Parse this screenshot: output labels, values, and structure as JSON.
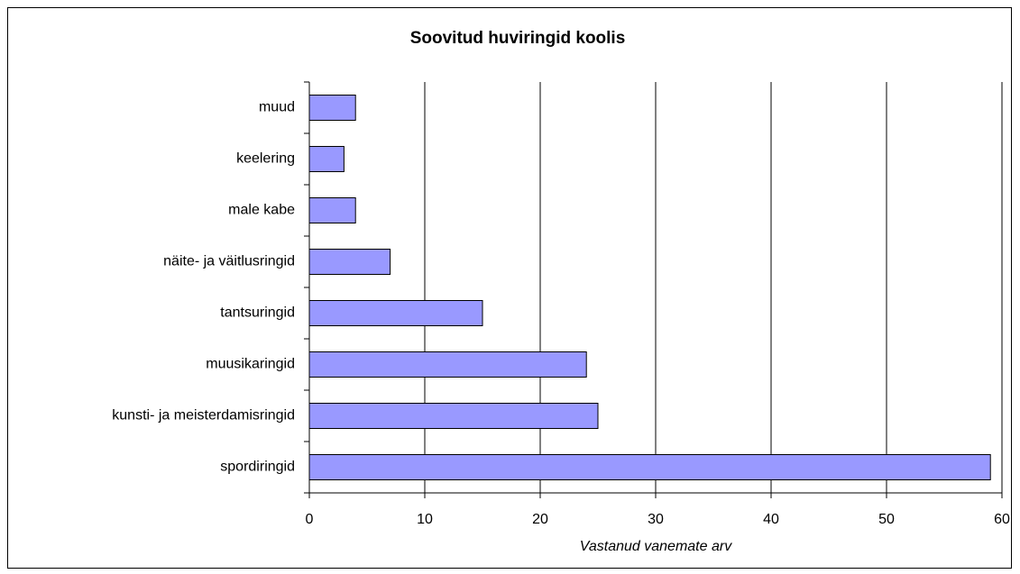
{
  "chart_data": {
    "type": "bar",
    "orientation": "horizontal",
    "title": "Soovitud huviringid koolis",
    "xlabel": "Vastanud vanemate arv",
    "categories": [
      "muud",
      "keelering",
      "male kabe",
      "näite- ja väitlusringid",
      "tantsuringid",
      "muusikaringid",
      "kunsti- ja meisterdamisringid",
      "spordiringid"
    ],
    "values": [
      4,
      3,
      4,
      7,
      15,
      24,
      25,
      59
    ],
    "color": "#9999ff",
    "xlim": [
      0,
      60
    ],
    "xticks": [
      0,
      10,
      20,
      30,
      40,
      50,
      60
    ],
    "grid": true
  }
}
